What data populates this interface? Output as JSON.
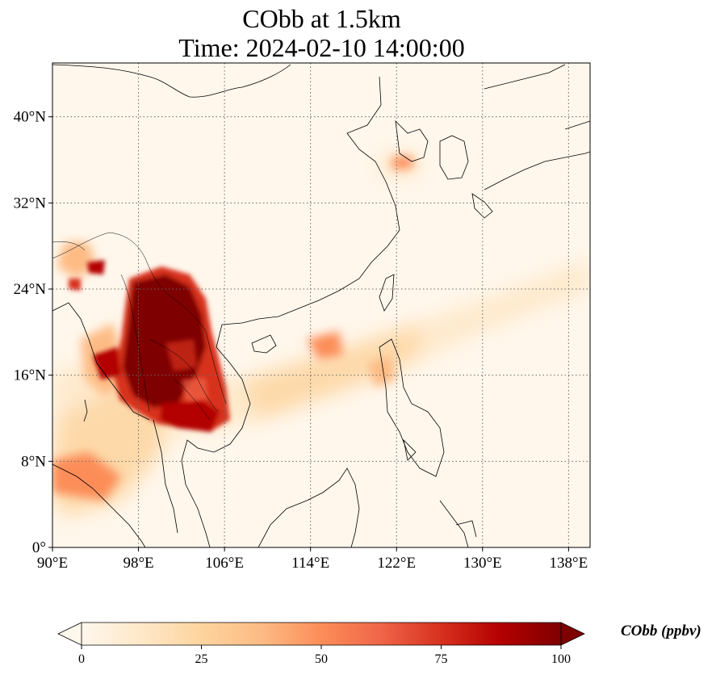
{
  "title": {
    "line1": "CObb at 1.5km",
    "line2": "Time: 2024-02-10 14:00:00"
  },
  "map": {
    "projection": "PlateCarree",
    "lon_range": [
      90,
      140
    ],
    "lat_range": [
      0,
      45
    ],
    "lon_ticks": [
      90,
      98,
      106,
      114,
      122,
      130,
      138
    ],
    "lat_ticks": [
      0,
      8,
      16,
      24,
      32,
      40
    ],
    "lon_tick_labels": [
      "90°E",
      "98°E",
      "106°E",
      "114°E",
      "122°E",
      "130°E",
      "138°E"
    ],
    "lat_tick_labels": [
      "0°",
      "8°N",
      "16°N",
      "24°N",
      "32°N",
      "40°N"
    ],
    "gridlines": "dotted",
    "coastlines": true,
    "borders": true,
    "colormap": "OrRd",
    "field_colors": [
      "#fff7ec",
      "#fee8c8",
      "#fdd49e",
      "#fdbb84",
      "#fc8d59",
      "#ef6548",
      "#d7301f",
      "#b30000",
      "#7f0000"
    ]
  },
  "colorbar": {
    "label": "CObb (ppbv)",
    "min": 0,
    "max": 100,
    "ticks": [
      0,
      25,
      50,
      75,
      100
    ],
    "tick_labels": [
      "0",
      "25",
      "50",
      "75",
      "100"
    ],
    "extend": "both",
    "orientation": "horizontal"
  }
}
